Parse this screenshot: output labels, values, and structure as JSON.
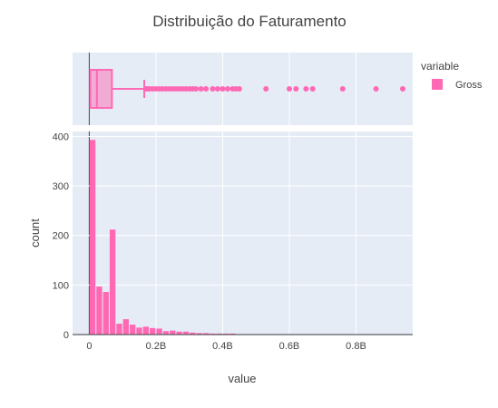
{
  "chart_data": [
    {
      "type": "box",
      "panel": "marginal-box",
      "orientation": "horizontal",
      "series": [
        {
          "name": "Gross",
          "stats": {
            "lowerfence": 0,
            "q1": 0.003,
            "median": 0.023,
            "q3": 0.068,
            "upperfence": 0.165
          },
          "outliers": [
            0.17,
            0.175,
            0.18,
            0.19,
            0.2,
            0.21,
            0.22,
            0.23,
            0.24,
            0.25,
            0.26,
            0.27,
            0.28,
            0.29,
            0.3,
            0.31,
            0.32,
            0.335,
            0.35,
            0.37,
            0.385,
            0.4,
            0.415,
            0.43,
            0.44,
            0.45,
            0.53,
            0.6,
            0.62,
            0.65,
            0.67,
            0.76,
            0.86,
            0.94
          ]
        }
      ],
      "xlim": [
        -0.05,
        0.97
      ]
    },
    {
      "type": "bar",
      "panel": "histogram",
      "title": "Distribuição do Faturamento",
      "xlabel": "value",
      "ylabel": "count",
      "x_ticks": [
        0,
        0.2,
        0.4,
        0.6,
        0.8
      ],
      "x_tick_labels": [
        "0",
        "0.2B",
        "0.4B",
        "0.6B",
        "0.8B"
      ],
      "y_ticks": [
        0,
        100,
        200,
        300,
        400
      ],
      "xlim": [
        -0.05,
        0.97
      ],
      "ylim": [
        0,
        410
      ],
      "grid": true,
      "legend_title": "variable",
      "legend_position": "right",
      "bin_width": 0.02,
      "series": [
        {
          "name": "Gross",
          "bin_starts": [
            0,
            0.02,
            0.04,
            0.06,
            0.08,
            0.1,
            0.12,
            0.14,
            0.16,
            0.18,
            0.2,
            0.22,
            0.24,
            0.26,
            0.28,
            0.3,
            0.32,
            0.34,
            0.36,
            0.38,
            0.4,
            0.42,
            0.44,
            0.46,
            0.48,
            0.5,
            0.52,
            0.54,
            0.56,
            0.58,
            0.6,
            0.62,
            0.64,
            0.66,
            0.68,
            0.7,
            0.72,
            0.74,
            0.76,
            0.78,
            0.8,
            0.82,
            0.84,
            0.86,
            0.88,
            0.9,
            0.92
          ],
          "values": [
            393,
            97,
            86,
            212,
            22,
            31,
            20,
            14,
            16,
            13,
            12,
            7,
            8,
            6,
            6,
            4,
            3,
            3,
            2,
            2,
            2,
            2,
            1,
            1,
            1,
            0,
            1,
            0,
            0,
            0,
            1,
            1,
            0,
            0,
            1,
            0,
            0,
            0,
            1,
            0,
            0,
            0,
            0,
            1,
            0,
            0,
            1
          ]
        }
      ]
    }
  ],
  "colors": {
    "series": "#ff69b4",
    "box_fill": "rgba(255,105,180,0.5)",
    "plot_bg": "#e5ecf6",
    "grid": "#ffffff",
    "text": "#444444"
  }
}
